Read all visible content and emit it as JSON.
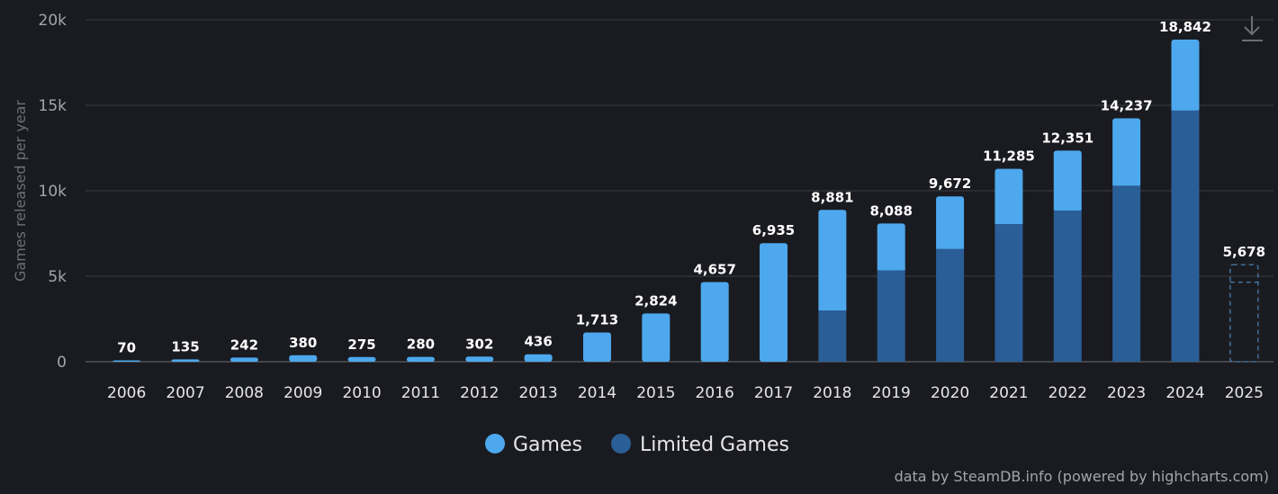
{
  "chart_data": {
    "type": "bar",
    "stacked": true,
    "categories": [
      "2006",
      "2007",
      "2008",
      "2009",
      "2010",
      "2011",
      "2012",
      "2013",
      "2014",
      "2015",
      "2016",
      "2017",
      "2018",
      "2019",
      "2020",
      "2021",
      "2022",
      "2023",
      "2024",
      "2025"
    ],
    "totals": [
      70,
      135,
      242,
      380,
      275,
      280,
      302,
      436,
      1713,
      2824,
      4657,
      6935,
      8881,
      8088,
      9672,
      11285,
      12351,
      14237,
      18842,
      5678
    ],
    "total_labels": [
      "70",
      "135",
      "242",
      "380",
      "275",
      "280",
      "302",
      "436",
      "1,713",
      "2,824",
      "4,657",
      "6,935",
      "8,881",
      "8,088",
      "9,672",
      "11,285",
      "12,351",
      "14,237",
      "18,842",
      "5,678"
    ],
    "series": [
      {
        "name": "Games",
        "color": "#4da8ee",
        "values": [
          70,
          135,
          242,
          380,
          275,
          280,
          302,
          436,
          1713,
          2824,
          4657,
          6935,
          5881,
          2738,
          3072,
          3235,
          3501,
          3937,
          4142,
          1028
        ]
      },
      {
        "name": "Limited Games",
        "color": "#2a5e96",
        "values": [
          0,
          0,
          0,
          0,
          0,
          0,
          0,
          0,
          0,
          0,
          0,
          0,
          3000,
          5350,
          6600,
          8050,
          8850,
          10300,
          14700,
          4650
        ]
      }
    ],
    "last_bar_style": "dashed-outline",
    "ylabel": "Games released per year",
    "ylim": [
      0,
      20000
    ],
    "yticks": [
      0,
      5000,
      10000,
      15000,
      20000
    ],
    "ytick_labels": [
      "0",
      "5k",
      "10k",
      "15k",
      "20k"
    ],
    "grid": true,
    "legend": "bottom-center"
  },
  "legend": {
    "items": [
      {
        "label": "Games",
        "color": "#4da8ee"
      },
      {
        "label": "Limited Games",
        "color": "#2a5e96"
      }
    ]
  },
  "credits": "data by SteamDB.info (powered by highcharts.com)",
  "download_icon": "download-icon"
}
